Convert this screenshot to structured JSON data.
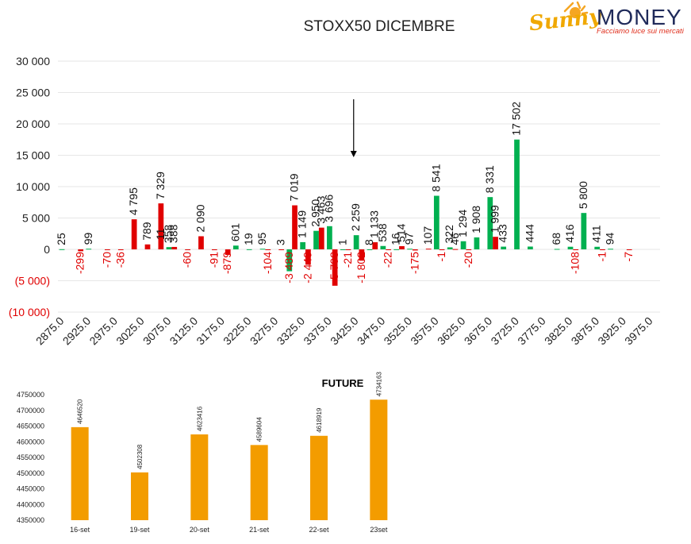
{
  "brand": {
    "name_part1": "Sunny",
    "name_part2": "MONEY",
    "tagline": "Facciamo luce sui mercati",
    "colors": {
      "sun": "#f5a623",
      "sunny": "#f0a800",
      "money": "#1f2a5a",
      "tagline": "#e0301e"
    }
  },
  "colors": {
    "positive": "#00b050",
    "negative": "#e00000",
    "future": "#f39c00",
    "grid": "#e6e6e6",
    "text": "#111111"
  },
  "chart_data": [
    {
      "type": "bar",
      "title": "STOXX50 DICEMBRE",
      "ylim": [
        -10000,
        30000
      ],
      "yticks": [
        30000,
        25000,
        20000,
        15000,
        10000,
        5000,
        0,
        -5000,
        -10000
      ],
      "ytick_labels": [
        "30 000",
        "25 000",
        "20 000",
        "15 000",
        "10 000",
        "5 000",
        "0",
        "(5 000)",
        "(10 000)"
      ],
      "categories": [
        "2875.0",
        "2900.0",
        "2925.0",
        "2950.0",
        "2975.0",
        "3000.0",
        "3025.0",
        "3050.0",
        "3075.0",
        "3100.0",
        "3125.0",
        "3150.0",
        "3175.0",
        "3200.0",
        "3225.0",
        "3250.0",
        "3275.0",
        "3300.0",
        "3325.0",
        "3350.0",
        "3375.0",
        "3400.0",
        "3425.0",
        "3450.0",
        "3475.0",
        "3500.0",
        "3525.0",
        "3550.0",
        "3575.0",
        "3600.0",
        "3625.0",
        "3650.0",
        "3675.0",
        "3700.0",
        "3725.0",
        "3750.0",
        "3775.0",
        "3800.0",
        "3825.0",
        "3850.0",
        "3875.0",
        "3900.0",
        "3925.0",
        "3950.0",
        "3975.0"
      ],
      "xtick_labels": [
        "2875.0",
        "2925.0",
        "2975.0",
        "3025.0",
        "3075.0",
        "3125.0",
        "3175.0",
        "3225.0",
        "3275.0",
        "3325.0",
        "3375.0",
        "3425.0",
        "3475.0",
        "3525.0",
        "3575.0",
        "3625.0",
        "3675.0",
        "3725.0",
        "3775.0",
        "3825.0",
        "3875.0",
        "3925.0",
        "3975.0"
      ],
      "series": [
        {
          "color": "#00b050",
          "values": [
            25,
            0,
            99,
            0,
            0,
            0,
            0,
            0,
            358,
            0,
            0,
            0,
            0,
            601,
            19,
            95,
            0,
            -3489,
            1149,
            2950,
            3696,
            1,
            2259,
            8,
            538,
            16,
            97,
            0,
            8541,
            322,
            1294,
            1908,
            8331,
            433,
            17502,
            444,
            0,
            68,
            416,
            5800,
            411,
            94,
            0,
            0,
            0
          ],
          "labels": [
            "25",
            "",
            "99",
            "",
            "",
            "",
            "",
            "",
            "358",
            "",
            "",
            "",
            "",
            "601",
            "19",
            "95",
            "",
            "-3 489",
            "1 149",
            "2 950",
            "3 696",
            "1",
            "2 259",
            "8",
            "538",
            "16",
            "97",
            "",
            "8 541",
            "322",
            "1 294",
            "1 908",
            "8 331",
            "433",
            "17 502",
            "444",
            "",
            "68",
            "416",
            "5 800",
            "411",
            "94",
            "",
            "",
            ""
          ]
        },
        {
          "color": "#e00000",
          "values": [
            0,
            -299,
            0,
            -70,
            -36,
            4795,
            789,
            7329,
            388,
            -60,
            2090,
            -91,
            -879,
            0,
            0,
            -104,
            3,
            7019,
            -2449,
            3463,
            -5798,
            -21,
            -1802,
            1133,
            -22,
            514,
            -175,
            107,
            -1,
            46,
            -20,
            0,
            1999,
            0,
            0,
            0,
            0,
            0,
            -108,
            0,
            -1,
            0,
            -7,
            0,
            0
          ],
          "labels": [
            "",
            "-299",
            "",
            "-70",
            "-36",
            "4 795",
            "789",
            "7 329",
            "388",
            "-60",
            "2 090",
            "-91",
            "-879",
            "",
            "",
            "-104",
            "3",
            "7 019",
            "-2 449",
            "3 463",
            "-5 798",
            "-21",
            "-1 802",
            "1 133",
            "-22",
            "514",
            "-175",
            "107",
            "-1",
            "46",
            "-20",
            "",
            "1 999",
            "",
            "",
            "",
            "",
            "",
            "-108",
            "",
            "-1",
            "",
            "-7",
            "",
            ""
          ]
        }
      ],
      "extra_labels": [
        "11"
      ],
      "arrow_at": "3425.0"
    },
    {
      "type": "bar",
      "title": "FUTURE",
      "categories": [
        "16-set",
        "19-set",
        "20-set",
        "21-set",
        "22-set",
        "23set"
      ],
      "values": [
        4646520,
        4502308,
        4623416,
        4589604,
        4618919,
        4734163
      ],
      "ylim": [
        4350000,
        4750000
      ],
      "yticks": [
        4750000,
        4700000,
        4650000,
        4600000,
        4550000,
        4500000,
        4450000,
        4400000,
        4350000
      ],
      "ytick_labels": [
        "4750000",
        "4700000",
        "4650000",
        "4600000",
        "4550000",
        "4500000",
        "4450000",
        "4400000",
        "4350000"
      ],
      "color": "#f39c00"
    }
  ]
}
